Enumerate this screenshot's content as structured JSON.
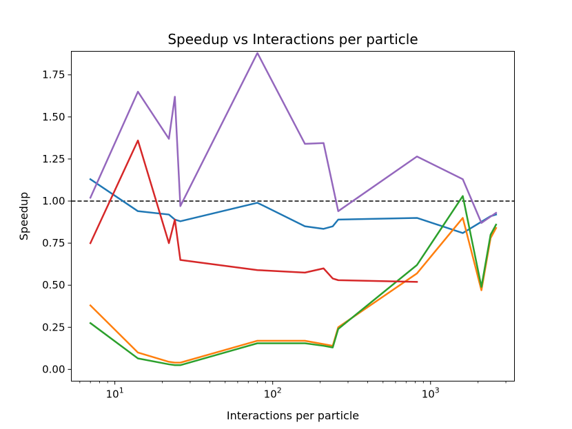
{
  "chart_data": {
    "type": "line",
    "title": "Speedup vs Interactions per particle",
    "xlabel": "Interactions per particle",
    "ylabel": "Speedup",
    "xscale": "log",
    "xlim": [
      5.3,
      3400
    ],
    "ylim": [
      -0.07,
      1.89
    ],
    "grid": false,
    "legend": "none",
    "reference_line": {
      "y": 1.0,
      "style": "dashed",
      "color": "#000000"
    },
    "x_major_ticks": [
      {
        "value": 10,
        "base": "10",
        "exponent": "1"
      },
      {
        "value": 100,
        "base": "10",
        "exponent": "2"
      },
      {
        "value": 1000,
        "base": "10",
        "exponent": "3"
      }
    ],
    "x_minor_ticks": [
      6,
      7,
      8,
      9,
      20,
      30,
      40,
      50,
      60,
      70,
      80,
      90,
      200,
      300,
      400,
      500,
      600,
      700,
      800,
      900,
      2000,
      3000
    ],
    "y_ticks": [
      {
        "value": 0.0,
        "label": "0.00"
      },
      {
        "value": 0.25,
        "label": "0.25"
      },
      {
        "value": 0.5,
        "label": "0.50"
      },
      {
        "value": 0.75,
        "label": "0.75"
      },
      {
        "value": 1.0,
        "label": "1.00"
      },
      {
        "value": 1.25,
        "label": "1.25"
      },
      {
        "value": 1.5,
        "label": "1.50"
      },
      {
        "value": 1.75,
        "label": "1.75"
      }
    ],
    "series": [
      {
        "name": "series-blue",
        "color": "#1f77b4",
        "x": [
          7,
          14,
          22,
          24,
          26,
          80,
          160,
          210,
          240,
          260,
          820,
          1600,
          2400,
          2600
        ],
        "y": [
          1.13,
          0.94,
          0.92,
          0.89,
          0.88,
          0.99,
          0.85,
          0.835,
          0.85,
          0.89,
          0.9,
          0.81,
          0.91,
          0.92
        ]
      },
      {
        "name": "series-orange",
        "color": "#ff7f0e",
        "x": [
          7,
          14,
          22,
          24,
          26,
          80,
          160,
          210,
          240,
          260,
          820,
          1600,
          2100,
          2400,
          2600
        ],
        "y": [
          0.38,
          0.1,
          0.045,
          0.04,
          0.04,
          0.17,
          0.17,
          0.15,
          0.14,
          0.25,
          0.57,
          0.9,
          0.47,
          0.78,
          0.84
        ]
      },
      {
        "name": "series-green",
        "color": "#2ca02c",
        "x": [
          7,
          14,
          22,
          24,
          26,
          80,
          160,
          210,
          240,
          260,
          820,
          1600,
          2100,
          2400,
          2600
        ],
        "y": [
          0.275,
          0.065,
          0.03,
          0.025,
          0.025,
          0.155,
          0.155,
          0.14,
          0.13,
          0.24,
          0.62,
          1.03,
          0.49,
          0.8,
          0.86
        ]
      },
      {
        "name": "series-red",
        "color": "#d62728",
        "x": [
          7,
          14,
          22,
          24,
          26,
          80,
          160,
          210,
          240,
          260,
          820
        ],
        "y": [
          0.75,
          1.36,
          0.75,
          0.89,
          0.65,
          0.59,
          0.575,
          0.6,
          0.54,
          0.53,
          0.52
        ]
      },
      {
        "name": "series-purple",
        "color": "#9467bd",
        "x": [
          7,
          14,
          22,
          24,
          26,
          80,
          160,
          210,
          260,
          820,
          1600,
          2100,
          2600
        ],
        "y": [
          1.02,
          1.65,
          1.37,
          1.62,
          0.97,
          1.88,
          1.34,
          1.345,
          0.94,
          1.265,
          1.13,
          0.87,
          0.93
        ]
      }
    ]
  }
}
